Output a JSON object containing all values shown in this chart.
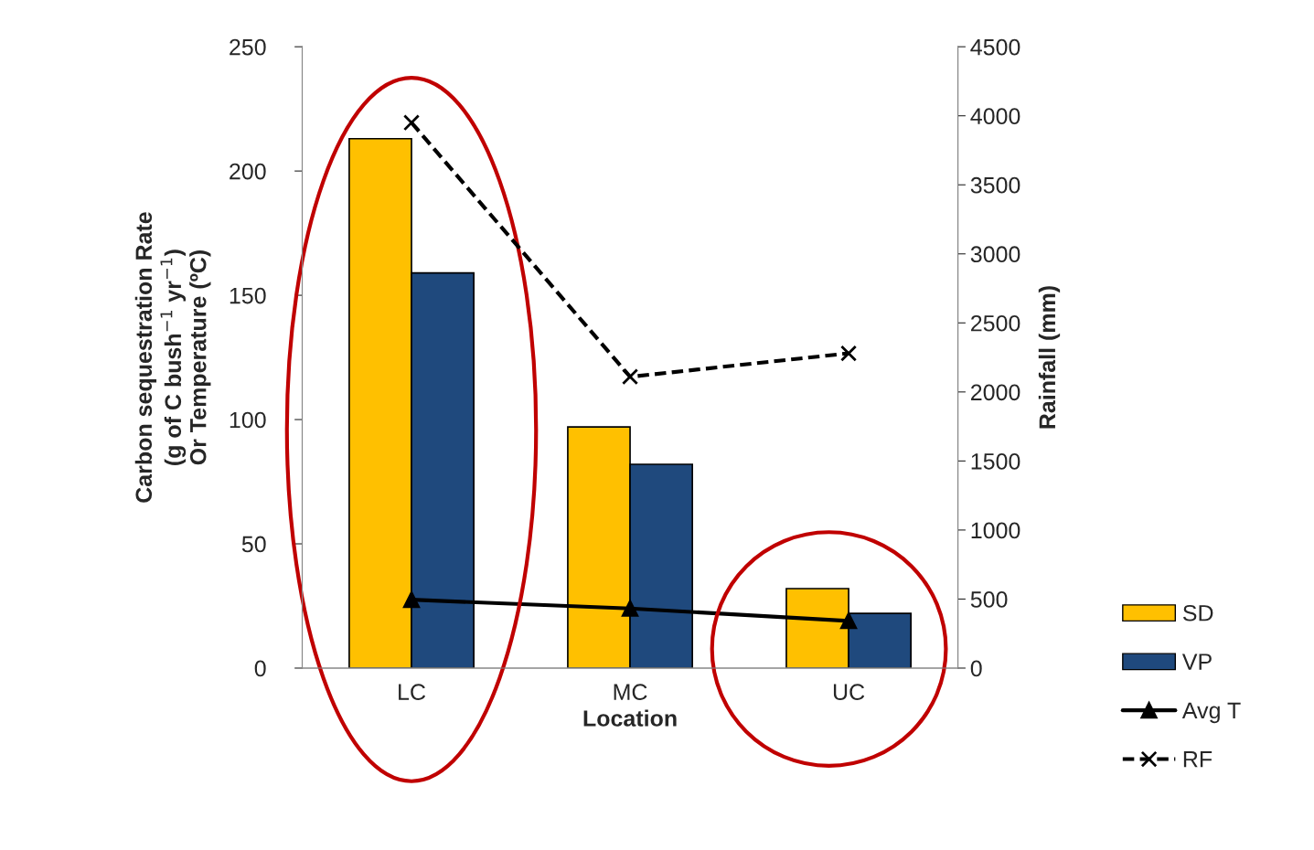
{
  "chart_data": {
    "type": "bar",
    "categories": [
      "LC",
      "MC",
      "UC"
    ],
    "xlabel": "Location",
    "ylabel": "Carbon sequestration Rate\n(g of C bush$^{−1}$ yr$^{−1}$)\nOr Temperature (ºC)",
    "y2label": "Rainfall (mm)",
    "ylim": [
      0,
      250
    ],
    "yticks": [
      0,
      50,
      100,
      150,
      200,
      250
    ],
    "y2lim": [
      0,
      4500
    ],
    "y2ticks": [
      0,
      500,
      1000,
      1500,
      2000,
      2500,
      3000,
      3500,
      4000,
      4500
    ],
    "grid": false,
    "legend": "right",
    "series": [
      {
        "name": "SD",
        "color": "#ffc000",
        "values": [
          213,
          97,
          32
        ]
      },
      {
        "name": "VP",
        "color": "#1f497d",
        "values": [
          159,
          82,
          22
        ]
      },
      {
        "name": "Avg T",
        "type": "line",
        "color": "#000000",
        "marker": "triangle",
        "line_style": "solid",
        "values": [
          27.5,
          24,
          19
        ]
      },
      {
        "name": "RF",
        "type": "line",
        "axis": "y2",
        "color": "#000000",
        "marker": "cross",
        "line_style": "dashed",
        "values": [
          3950,
          2110,
          2280
        ]
      }
    ]
  }
}
